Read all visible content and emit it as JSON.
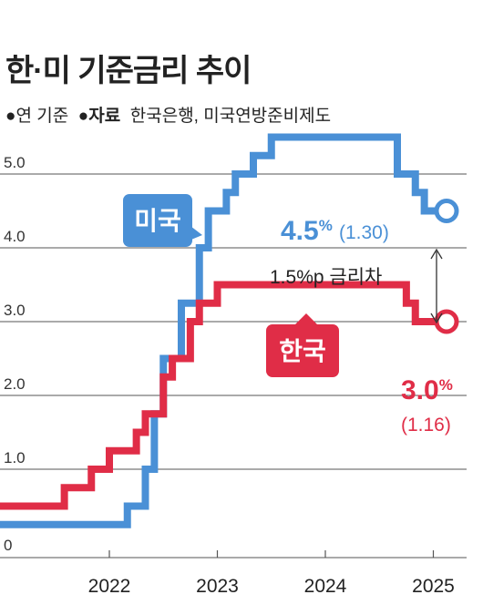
{
  "title": "한·미 기준금리 추이",
  "unit_note": "●연 기준",
  "source_label": "●자료",
  "source_text": "한국은행, 미국연방준비제도",
  "colors": {
    "us": "#4a90d6",
    "kr": "#e02d47",
    "grid": "#555555",
    "text": "#333333"
  },
  "chart_data": {
    "type": "line",
    "step": true,
    "ylim": [
      0,
      5.5
    ],
    "yticks": [
      "5.0",
      "4.0",
      "3.0",
      "2.0",
      "1.0",
      "0"
    ],
    "xticks": [
      "2022",
      "2023",
      "2024",
      "2025"
    ],
    "xlim": [
      "2021-01",
      "2025-05"
    ],
    "series": [
      {
        "name": "미국",
        "key": "us",
        "points": [
          [
            "2021-01",
            0.25
          ],
          [
            "2022-03",
            0.5
          ],
          [
            "2022-05",
            1.0
          ],
          [
            "2022-06",
            1.75
          ],
          [
            "2022-07",
            2.5
          ],
          [
            "2022-09",
            3.25
          ],
          [
            "2022-11",
            4.0
          ],
          [
            "2022-12",
            4.5
          ],
          [
            "2023-02",
            4.75
          ],
          [
            "2023-03",
            5.0
          ],
          [
            "2023-05",
            5.25
          ],
          [
            "2023-07",
            5.5
          ],
          [
            "2024-09",
            5.0
          ],
          [
            "2024-11",
            4.75
          ],
          [
            "2024-12",
            4.5
          ],
          [
            "2025-01",
            4.5
          ]
        ],
        "end_value": "4.5",
        "end_unit": "%",
        "end_note": "(1.30)"
      },
      {
        "name": "한국",
        "key": "kr",
        "points": [
          [
            "2021-01",
            0.5
          ],
          [
            "2021-08",
            0.75
          ],
          [
            "2021-11",
            1.0
          ],
          [
            "2022-01",
            1.25
          ],
          [
            "2022-04",
            1.5
          ],
          [
            "2022-05",
            1.75
          ],
          [
            "2022-07",
            2.25
          ],
          [
            "2022-08",
            2.5
          ],
          [
            "2022-10",
            3.0
          ],
          [
            "2022-11",
            3.25
          ],
          [
            "2023-01",
            3.5
          ],
          [
            "2024-10",
            3.25
          ],
          [
            "2024-11",
            3.0
          ],
          [
            "2025-01",
            3.0
          ]
        ],
        "end_value": "3.0",
        "end_unit": "%",
        "end_note": "(1.16)"
      }
    ],
    "annotation": "1.5%p 금리차"
  }
}
